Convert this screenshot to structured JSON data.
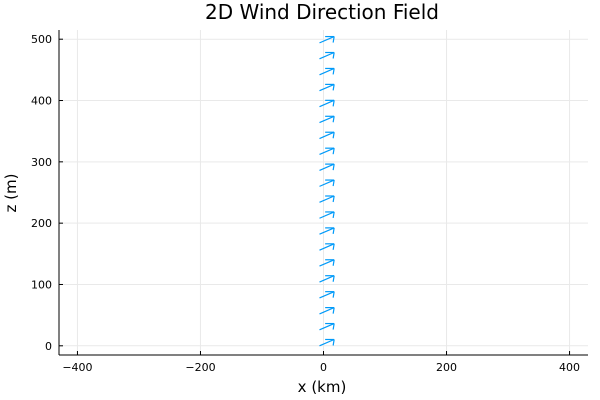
{
  "chart_data": {
    "type": "quiver",
    "title": "2D Wind Direction Field",
    "xlabel": "x (km)",
    "ylabel": "z (m)",
    "xlim": [
      -430,
      430
    ],
    "ylim": [
      -15,
      515
    ],
    "xticks": [
      -400,
      -200,
      0,
      200,
      400
    ],
    "xtick_labels": [
      "−400",
      "−200",
      "0",
      "200",
      "400"
    ],
    "yticks": [
      0,
      100,
      200,
      300,
      400,
      500
    ],
    "ytick_labels": [
      "0",
      "100",
      "200",
      "300",
      "400",
      "500"
    ],
    "grid": true,
    "legend": "none",
    "series_color": "#009af9",
    "arrows": {
      "x": 0,
      "z": [
        0,
        26,
        52,
        78,
        104,
        130,
        156,
        182,
        208,
        234,
        260,
        286,
        312,
        338,
        364,
        390,
        416,
        442,
        468,
        494
      ],
      "u": 8,
      "w": 4
    }
  }
}
